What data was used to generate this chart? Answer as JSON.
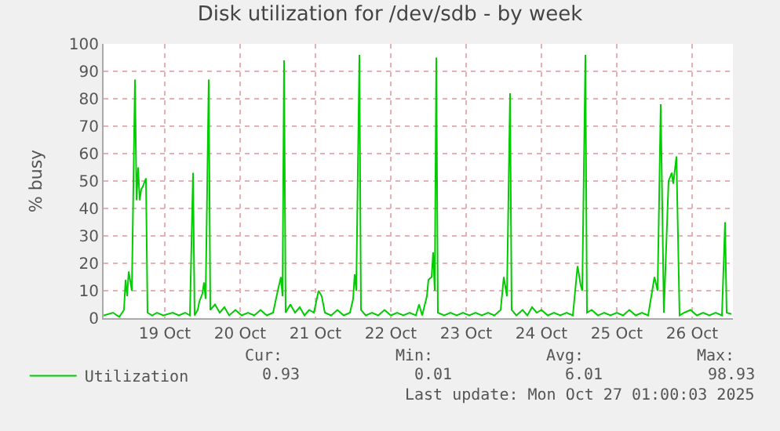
{
  "chart_data": {
    "type": "line",
    "title": "Disk utilization for /dev/sdb - by week",
    "ylabel": "% busy",
    "x": [
      "2025-10-18T16:30",
      "2025-10-18T19:30",
      "2025-10-18T21:30",
      "2025-10-18T23:00",
      "2025-10-18T23:30",
      "2025-10-19T00:00",
      "2025-10-19T00:30",
      "2025-10-19T01:30",
      "2025-10-19T02:30",
      "2025-10-19T03:00",
      "2025-10-19T03:30",
      "2025-10-19T04:00",
      "2025-10-19T04:30",
      "2025-10-19T05:00",
      "2025-10-19T06:00",
      "2025-10-19T06:30",
      "2025-10-19T08:00",
      "2025-10-19T09:30",
      "2025-10-19T11:30",
      "2025-10-19T14:30",
      "2025-10-19T16:30",
      "2025-10-19T18:30",
      "2025-10-19T20:00",
      "2025-10-19T21:00",
      "2025-10-19T21:30",
      "2025-10-19T22:30",
      "2025-10-19T23:00",
      "2025-10-20T00:00",
      "2025-10-20T00:30",
      "2025-10-20T01:00",
      "2025-10-20T02:00",
      "2025-10-20T02:30",
      "2025-10-20T04:00",
      "2025-10-20T05:30",
      "2025-10-20T07:00",
      "2025-10-20T08:30",
      "2025-10-20T10:30",
      "2025-10-20T12:30",
      "2025-10-20T14:30",
      "2025-10-20T16:30",
      "2025-10-20T18:30",
      "2025-10-20T20:30",
      "2025-10-20T22:30",
      "2025-10-21T00:00",
      "2025-10-21T01:00",
      "2025-10-21T01:30",
      "2025-10-21T02:00",
      "2025-10-21T02:30",
      "2025-10-21T04:00",
      "2025-10-21T05:30",
      "2025-10-21T07:00",
      "2025-10-21T08:30",
      "2025-10-21T10:00",
      "2025-10-21T11:30",
      "2025-10-21T13:00",
      "2025-10-21T14:00",
      "2025-10-21T15:00",
      "2025-10-21T17:00",
      "2025-10-21T19:00",
      "2025-10-21T21:00",
      "2025-10-21T23:00",
      "2025-10-22T00:00",
      "2025-10-22T00:30",
      "2025-10-22T01:00",
      "2025-10-22T02:00",
      "2025-10-22T02:30",
      "2025-10-22T04:00",
      "2025-10-22T06:00",
      "2025-10-22T08:00",
      "2025-10-22T10:00",
      "2025-10-22T12:00",
      "2025-10-22T14:00",
      "2025-10-22T16:00",
      "2025-10-22T18:00",
      "2025-10-22T20:00",
      "2025-10-22T21:00",
      "2025-10-22T22:00",
      "2025-10-22T23:30",
      "2025-10-23T00:00",
      "2025-10-23T01:00",
      "2025-10-23T01:30",
      "2025-10-23T02:00",
      "2025-10-23T02:30",
      "2025-10-23T03:00",
      "2025-10-23T05:00",
      "2025-10-23T07:00",
      "2025-10-23T09:00",
      "2025-10-23T11:00",
      "2025-10-23T13:00",
      "2025-10-23T15:00",
      "2025-10-23T17:00",
      "2025-10-23T19:00",
      "2025-10-23T21:00",
      "2025-10-23T23:00",
      "2025-10-24T00:00",
      "2025-10-24T01:00",
      "2025-10-24T02:00",
      "2025-10-24T02:30",
      "2025-10-24T04:00",
      "2025-10-24T06:00",
      "2025-10-24T07:30",
      "2025-10-24T09:00",
      "2025-10-24T10:30",
      "2025-10-24T12:00",
      "2025-10-24T14:00",
      "2025-10-24T16:00",
      "2025-10-24T18:00",
      "2025-10-24T20:00",
      "2025-10-24T22:00",
      "2025-10-24T23:30",
      "2025-10-25T00:30",
      "2025-10-25T01:00",
      "2025-10-25T02:00",
      "2025-10-25T02:30",
      "2025-10-25T04:00",
      "2025-10-25T06:00",
      "2025-10-25T08:00",
      "2025-10-25T10:00",
      "2025-10-25T12:00",
      "2025-10-25T14:00",
      "2025-10-25T16:00",
      "2025-10-25T18:00",
      "2025-10-25T20:00",
      "2025-10-25T22:00",
      "2025-10-26T00:00",
      "2025-10-26T01:00",
      "2025-10-26T02:00",
      "2025-10-26T03:00",
      "2025-10-26T04:30",
      "2025-10-26T05:30",
      "2025-10-26T06:00",
      "2025-10-26T07:00",
      "2025-10-26T08:00",
      "2025-10-26T09:30",
      "2025-10-26T11:30",
      "2025-10-26T13:30",
      "2025-10-26T15:30",
      "2025-10-26T17:30",
      "2025-10-26T19:30",
      "2025-10-26T21:30",
      "2025-10-26T22:30",
      "2025-10-26T23:00",
      "2025-10-27T00:30"
    ],
    "series": [
      {
        "name": "Utilization",
        "color": "#00cc00",
        "values": [
          1,
          2,
          0.5,
          3,
          14,
          8,
          17,
          10,
          87,
          43,
          55,
          43,
          47,
          48,
          51,
          2,
          1,
          2,
          1,
          2,
          1,
          2,
          1,
          53,
          1,
          3,
          6,
          9,
          13,
          7,
          87,
          3,
          5,
          2,
          4,
          1,
          3,
          1,
          2,
          1,
          3,
          1,
          2,
          10,
          15,
          8,
          94,
          2,
          5,
          2,
          4,
          1,
          3,
          2,
          10,
          8,
          2,
          1,
          3,
          1,
          2,
          7,
          16,
          10,
          96,
          3,
          1,
          2,
          1,
          3,
          1,
          2,
          1,
          2,
          1,
          5,
          1,
          8,
          14,
          15,
          24,
          10,
          95,
          2,
          1,
          2,
          1,
          2,
          1,
          2,
          1,
          2,
          1,
          3,
          15,
          8,
          82,
          3,
          1,
          3,
          1,
          4,
          2,
          3,
          1,
          2,
          1,
          2,
          1,
          19,
          12,
          10,
          96,
          2,
          3,
          1,
          2,
          1,
          2,
          1,
          3,
          1,
          2,
          1,
          15,
          10,
          78,
          2,
          50,
          53,
          49,
          59,
          1,
          2,
          3,
          1,
          2,
          1,
          2,
          1,
          35,
          2,
          1.5
        ]
      }
    ],
    "xlim": [
      "2025-10-18T16:30",
      "2025-10-27T01:00"
    ],
    "xticks": [
      {
        "value": "2025-10-19T12:00",
        "label": "19 Oct"
      },
      {
        "value": "2025-10-20T12:00",
        "label": "20 Oct"
      },
      {
        "value": "2025-10-21T12:00",
        "label": "21 Oct"
      },
      {
        "value": "2025-10-22T12:00",
        "label": "22 Oct"
      },
      {
        "value": "2025-10-23T12:00",
        "label": "23 Oct"
      },
      {
        "value": "2025-10-24T12:00",
        "label": "24 Oct"
      },
      {
        "value": "2025-10-25T12:00",
        "label": "25 Oct"
      },
      {
        "value": "2025-10-26T12:00",
        "label": "26 Oct"
      }
    ],
    "ylim": [
      0,
      100
    ],
    "yticks": [
      0,
      10,
      20,
      30,
      40,
      50,
      60,
      70,
      80,
      90,
      100
    ],
    "grid": true,
    "legend": "bottom left",
    "annotations": [
      "Cur:",
      "Min:",
      "Avg:",
      "Max:",
      "0.93",
      "0.01",
      "6.01",
      "98.93",
      "Last update: Mon Oct 27 01:00:03 2025"
    ]
  }
}
